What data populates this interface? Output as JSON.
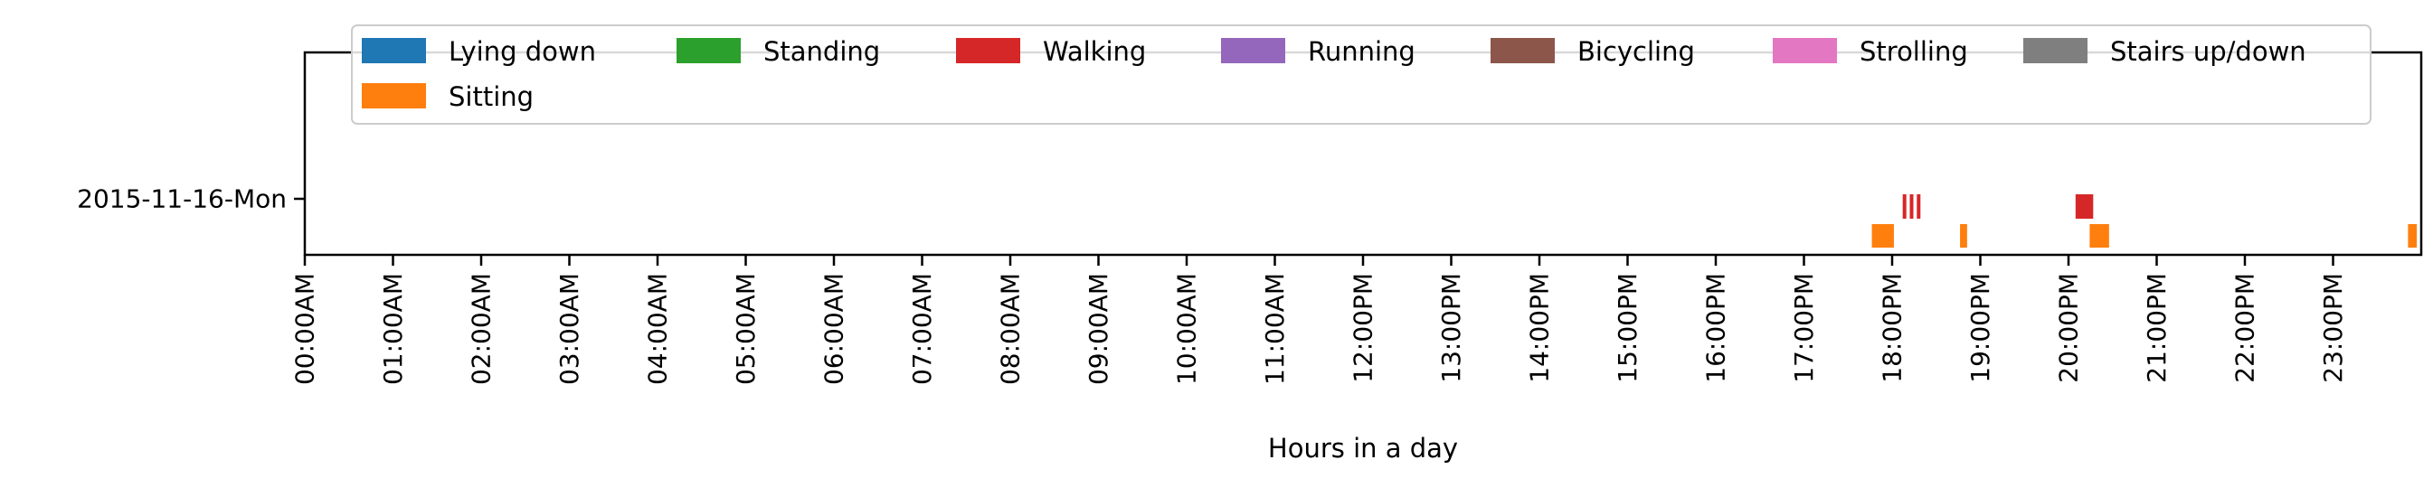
{
  "chart_data": {
    "type": "timeline",
    "title": "",
    "xlabel": "Hours in a day",
    "ylabel": "",
    "x_unit": "hours",
    "xlim": [
      0,
      24
    ],
    "x_ticks": [
      {
        "value": 0,
        "label": "00:00AM"
      },
      {
        "value": 1,
        "label": "01:00AM"
      },
      {
        "value": 2,
        "label": "02:00AM"
      },
      {
        "value": 3,
        "label": "03:00AM"
      },
      {
        "value": 4,
        "label": "04:00AM"
      },
      {
        "value": 5,
        "label": "05:00AM"
      },
      {
        "value": 6,
        "label": "06:00AM"
      },
      {
        "value": 7,
        "label": "07:00AM"
      },
      {
        "value": 8,
        "label": "08:00AM"
      },
      {
        "value": 9,
        "label": "09:00AM"
      },
      {
        "value": 10,
        "label": "10:00AM"
      },
      {
        "value": 11,
        "label": "11:00AM"
      },
      {
        "value": 12,
        "label": "12:00PM"
      },
      {
        "value": 13,
        "label": "13:00PM"
      },
      {
        "value": 14,
        "label": "14:00PM"
      },
      {
        "value": 15,
        "label": "15:00PM"
      },
      {
        "value": 16,
        "label": "16:00PM"
      },
      {
        "value": 17,
        "label": "17:00PM"
      },
      {
        "value": 18,
        "label": "18:00PM"
      },
      {
        "value": 19,
        "label": "19:00PM"
      },
      {
        "value": 20,
        "label": "20:00PM"
      },
      {
        "value": 21,
        "label": "21:00PM"
      },
      {
        "value": 22,
        "label": "22:00PM"
      },
      {
        "value": 23,
        "label": "23:00PM"
      }
    ],
    "y_ticks": [
      "2015-11-16-Mon"
    ],
    "grid": false,
    "legend_position": "top",
    "legend": [
      {
        "label": "Lying down",
        "color": "#1f77b4"
      },
      {
        "label": "Standing",
        "color": "#2ca02c"
      },
      {
        "label": "Walking",
        "color": "#d62728"
      },
      {
        "label": "Running",
        "color": "#9467bd"
      },
      {
        "label": "Bicycling",
        "color": "#8c564b"
      },
      {
        "label": "Strolling",
        "color": "#e377c2"
      },
      {
        "label": "Stairs up/down",
        "color": "#7f7f7f"
      },
      {
        "label": "Sitting",
        "color": "#ff7f0e"
      }
    ],
    "series": [
      {
        "name": "Walking",
        "color": "#d62728",
        "day": "2015-11-16-Mon",
        "intervals": [
          [
            18.12,
            18.15
          ],
          [
            18.2,
            18.23
          ],
          [
            18.28,
            18.31
          ],
          [
            20.08,
            20.28
          ]
        ]
      },
      {
        "name": "Sitting",
        "color": "#ff7f0e",
        "day": "2015-11-16-Mon",
        "intervals": [
          [
            17.77,
            18.02
          ],
          [
            18.77,
            18.85
          ],
          [
            20.24,
            20.46
          ],
          [
            23.85,
            23.95
          ]
        ]
      }
    ]
  }
}
